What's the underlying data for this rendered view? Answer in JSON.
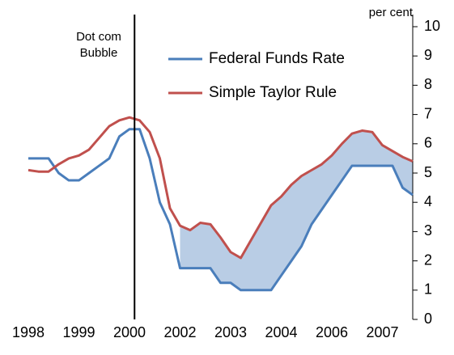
{
  "chart_data": {
    "type": "line",
    "y_axis_label": "per cent",
    "x": [
      1998.0,
      1998.2,
      1998.4,
      1998.6,
      1998.8,
      1999.0,
      1999.2,
      1999.4,
      1999.6,
      1999.8,
      2000.0,
      2000.2,
      2000.4,
      2000.6,
      2000.8,
      2001.0,
      2001.2,
      2001.4,
      2001.6,
      2001.8,
      2002.0,
      2002.2,
      2002.4,
      2002.6,
      2002.8,
      2003.0,
      2003.2,
      2003.4,
      2003.6,
      2003.8,
      2004.0,
      2004.2,
      2004.4,
      2004.6,
      2004.8,
      2005.0,
      2005.2,
      2005.4,
      2005.6
    ],
    "series": [
      {
        "name": "Federal Funds Rate",
        "color": "#4a7ebb",
        "values": [
          5.5,
          5.5,
          5.5,
          5.0,
          4.75,
          4.75,
          5.0,
          5.25,
          5.5,
          6.25,
          6.5,
          6.5,
          5.5,
          4.0,
          3.25,
          1.75,
          1.75,
          1.75,
          1.75,
          1.25,
          1.25,
          1.0,
          1.0,
          1.0,
          1.0,
          1.5,
          2.0,
          2.5,
          3.25,
          3.75,
          4.25,
          4.75,
          5.25,
          5.25,
          5.25,
          5.25,
          5.25,
          4.5,
          4.25
        ]
      },
      {
        "name": "Simple Taylor Rule",
        "color": "#c0504d",
        "values": [
          5.1,
          5.05,
          5.05,
          5.3,
          5.5,
          5.6,
          5.8,
          6.2,
          6.6,
          6.8,
          6.9,
          6.8,
          6.4,
          5.5,
          3.8,
          3.2,
          3.05,
          3.3,
          3.25,
          2.8,
          2.3,
          2.1,
          2.7,
          3.3,
          3.9,
          4.2,
          4.6,
          4.9,
          5.1,
          5.3,
          5.6,
          6.0,
          6.35,
          6.45,
          6.4,
          5.95,
          5.75,
          5.55,
          5.4
        ]
      }
    ],
    "xlim": [
      1998,
      2005.6
    ],
    "xticks": [
      1998,
      1999,
      2000,
      {
        "value": 2001,
        "label": "2002"
      },
      {
        "value": 2002,
        "label": "2003"
      },
      {
        "value": 2003,
        "label": "2004"
      },
      {
        "value": 2004,
        "label": "2006"
      },
      {
        "value": 2005,
        "label": "2007"
      }
    ],
    "ylim": [
      0,
      10
    ],
    "yticks": [
      0,
      1,
      2,
      3,
      4,
      5,
      6,
      7,
      8,
      9,
      10
    ],
    "y_axis_side": "right",
    "shade": {
      "from": 2001,
      "color": "#b9cde5"
    },
    "annotation": {
      "text": [
        "Dot com",
        "Bubble"
      ],
      "x": 2000.1
    }
  }
}
